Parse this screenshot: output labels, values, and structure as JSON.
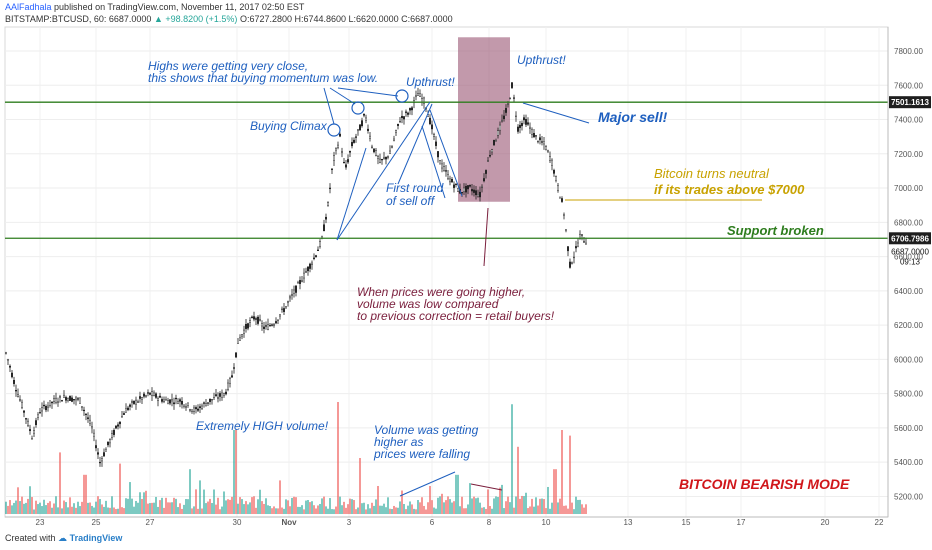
{
  "header": {
    "author": "AAlFadhala",
    "published": "published on TradingView.com, November 11, 2017 02:50 EST",
    "symbol": "BITSTAMP:BTCUSD, 60",
    "last": "6687.0000",
    "change": "+98.8200 (+1.5%)",
    "ohlc": "O:6727.2800 H:6744.8600 L:6620.0000 C:6687.0000"
  },
  "footer": {
    "created_with": "Created with",
    "brand": "TradingView"
  },
  "colors": {
    "up": "#26a69a",
    "down": "#ef5350",
    "candle": "#1e1e1e",
    "green_line": "#2e7d1e",
    "annotation_blue": "#1e5fbf",
    "annotation_gold": "#c8a200",
    "annotation_maroon": "#7a1e3c",
    "annotation_red": "#d0161a",
    "highlight_box": "#9c5a78"
  },
  "chart_data": {
    "type": "candlestick",
    "price_axis": {
      "ticks": [
        5200,
        5400,
        5600,
        5800,
        6000,
        6200,
        6400,
        6600,
        6800,
        7000,
        7200,
        7400,
        7600,
        7800
      ],
      "range": [
        5080,
        7940
      ]
    },
    "time_axis": {
      "labels": [
        "23",
        "25",
        "27",
        "30",
        "Nov",
        "3",
        "6",
        "8",
        "10",
        "13",
        "15",
        "17",
        "20",
        "22"
      ]
    },
    "price_path": [
      [
        0,
        6150
      ],
      [
        8,
        6000
      ],
      [
        15,
        5850
      ],
      [
        25,
        5680
      ],
      [
        32,
        5550
      ],
      [
        40,
        5700
      ],
      [
        55,
        5760
      ],
      [
        65,
        5780
      ],
      [
        80,
        5760
      ],
      [
        92,
        5600
      ],
      [
        100,
        5400
      ],
      [
        112,
        5550
      ],
      [
        125,
        5700
      ],
      [
        135,
        5750
      ],
      [
        150,
        5800
      ],
      [
        165,
        5760
      ],
      [
        180,
        5760
      ],
      [
        195,
        5700
      ],
      [
        210,
        5760
      ],
      [
        225,
        5800
      ],
      [
        232,
        5900
      ],
      [
        238,
        6100
      ],
      [
        245,
        6180
      ],
      [
        255,
        6250
      ],
      [
        265,
        6180
      ],
      [
        275,
        6220
      ],
      [
        285,
        6300
      ],
      [
        295,
        6400
      ],
      [
        305,
        6500
      ],
      [
        315,
        6600
      ],
      [
        322,
        6700
      ],
      [
        328,
        6900
      ],
      [
        333,
        7150
      ],
      [
        340,
        7300
      ],
      [
        345,
        7100
      ],
      [
        352,
        7250
      ],
      [
        360,
        7350
      ],
      [
        365,
        7430
      ],
      [
        372,
        7250
      ],
      [
        380,
        7150
      ],
      [
        390,
        7200
      ],
      [
        400,
        7400
      ],
      [
        410,
        7450
      ],
      [
        418,
        7550
      ],
      [
        425,
        7500
      ],
      [
        432,
        7350
      ],
      [
        440,
        7150
      ],
      [
        450,
        7050
      ],
      [
        460,
        6980
      ],
      [
        470,
        7000
      ],
      [
        480,
        6960
      ],
      [
        490,
        7200
      ],
      [
        500,
        7350
      ],
      [
        508,
        7480
      ],
      [
        512,
        7600
      ],
      [
        518,
        7350
      ],
      [
        525,
        7400
      ],
      [
        535,
        7300
      ],
      [
        545,
        7250
      ],
      [
        552,
        7150
      ],
      [
        558,
        7000
      ],
      [
        563,
        6900
      ],
      [
        567,
        6700
      ],
      [
        570,
        6550
      ],
      [
        575,
        6620
      ],
      [
        580,
        6720
      ],
      [
        586,
        6690
      ]
    ],
    "volume_spikes": [
      [
        60,
        0.55
      ],
      [
        85,
        0.35
      ],
      [
        120,
        0.45
      ],
      [
        190,
        0.4
      ],
      [
        200,
        0.3
      ],
      [
        235,
        0.75
      ],
      [
        280,
        0.3
      ],
      [
        338,
        1.0
      ],
      [
        360,
        0.5
      ],
      [
        430,
        0.25
      ],
      [
        457,
        0.35
      ],
      [
        512,
        0.98
      ],
      [
        518,
        0.6
      ],
      [
        555,
        0.4
      ],
      [
        562,
        0.75
      ],
      [
        570,
        0.7
      ]
    ],
    "levels": [
      {
        "label": "7501.1613",
        "price": 7501.1613,
        "color": "#2e7d1e"
      },
      {
        "label": "6706.7986",
        "price": 6706.7986,
        "color": "#2e7d1e"
      }
    ],
    "last_price": {
      "label": "6687.0000",
      "price": 6687,
      "countdown": "09:13"
    },
    "highlight_box": {
      "x_start": 458,
      "x_end": 510,
      "price_top": 7880,
      "price_bottom": 6920
    },
    "annotations": [
      "Highs were getting very close,",
      "this shows that buying momentum was low.",
      "Buying Climax",
      "Upthrust!",
      "Upthrust!",
      "First round",
      "of sell off",
      "Major sell!",
      "Bitcoin turns neutral",
      "if its trades above $7000",
      "Support broken",
      "When prices were going higher,",
      "volume was low compared",
      "to previous correction = retail buyers!",
      "Extremely HIGH volume!",
      "Volume was getting",
      "higher as",
      "prices were falling",
      "BITCOIN BEARISH MODE"
    ]
  }
}
